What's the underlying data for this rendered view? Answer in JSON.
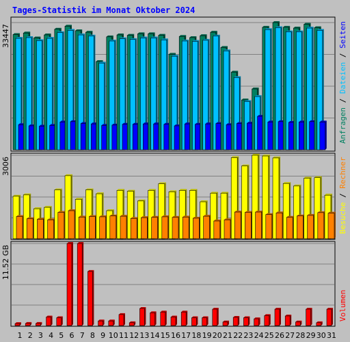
{
  "window": {
    "title": "Tages-Statistik im Monat Oktober 2024"
  },
  "colors": {
    "background": "#C0C0C0",
    "anfragen": "#008060",
    "dateien": "#00C0FF",
    "seiten": "#0000FF",
    "besuche": "#FFFF00",
    "rechner": "#FF8000",
    "volumen": "#FF0000",
    "weekend": "#008040"
  },
  "chart_data": [
    {
      "type": "bar",
      "panel": "anfragen-dateien-seiten",
      "categories": [
        "1",
        "2",
        "3",
        "4",
        "5",
        "6",
        "7",
        "8",
        "9",
        "10",
        "11",
        "12",
        "13",
        "14",
        "15",
        "16",
        "17",
        "18",
        "19",
        "20",
        "21",
        "22",
        "23",
        "24",
        "25",
        "26",
        "27",
        "28",
        "29",
        "30",
        "31"
      ],
      "weekend_days": [
        "5",
        "6",
        "12",
        "13",
        "19",
        "20",
        "26",
        "27"
      ],
      "ymax_label": "33447",
      "ylim": [
        0,
        33447
      ],
      "legend_left_to_right": [
        "Anfragen",
        "Dateien",
        "Seiten"
      ],
      "series": [
        {
          "name": "Anfragen",
          "color": "#008060",
          "values": [
            30300,
            30700,
            29400,
            30200,
            31700,
            32500,
            31300,
            30900,
            23200,
            29700,
            30200,
            30100,
            30500,
            30500,
            30100,
            25100,
            29800,
            29500,
            30000,
            30900,
            26900,
            20400,
            13100,
            16000,
            32200,
            33447,
            32200,
            32000,
            33000,
            32100,
            0
          ]
        },
        {
          "name": "Dateien",
          "color": "#00C0FF",
          "values": [
            29300,
            29500,
            28700,
            29300,
            30800,
            31400,
            30200,
            29900,
            22800,
            28600,
            29200,
            29000,
            29400,
            29400,
            28900,
            24600,
            28600,
            28500,
            28800,
            29900,
            26000,
            19000,
            12700,
            14000,
            31600,
            32100,
            31000,
            31000,
            32000,
            31400,
            0
          ]
        },
        {
          "name": "Seiten",
          "color": "#0000FF",
          "values": [
            6600,
            6300,
            6200,
            6400,
            7300,
            7400,
            6900,
            6800,
            6400,
            6500,
            6700,
            6700,
            6800,
            6800,
            6700,
            6300,
            6800,
            6700,
            6800,
            6900,
            6600,
            6900,
            7000,
            8800,
            7300,
            7400,
            7200,
            7300,
            7400,
            7300,
            0
          ]
        }
      ]
    },
    {
      "type": "bar",
      "panel": "besuche-rechner",
      "categories": [
        "1",
        "2",
        "3",
        "4",
        "5",
        "6",
        "7",
        "8",
        "9",
        "10",
        "11",
        "12",
        "13",
        "14",
        "15",
        "16",
        "17",
        "18",
        "19",
        "20",
        "21",
        "22",
        "23",
        "24",
        "25",
        "26",
        "27",
        "28",
        "29",
        "30",
        "31"
      ],
      "ymax_label": "3006",
      "ylim": [
        0,
        3006
      ],
      "legend_left_to_right": [
        "Besuche",
        "Rechner"
      ],
      "series": [
        {
          "name": "Besuche",
          "color": "#FFFF00",
          "values": [
            1530,
            1580,
            1080,
            1130,
            1760,
            2270,
            1420,
            1760,
            1620,
            1010,
            1740,
            1710,
            1360,
            1740,
            1980,
            1690,
            1740,
            1740,
            1330,
            1640,
            1640,
            2920,
            2620,
            3006,
            2980,
            2910,
            1990,
            1900,
            2180,
            2200,
            1570
          ]
        },
        {
          "name": "Rechner",
          "color": "#FF8000",
          "values": [
            800,
            720,
            700,
            680,
            950,
            1010,
            780,
            800,
            790,
            820,
            810,
            730,
            760,
            770,
            790,
            770,
            780,
            740,
            810,
            640,
            680,
            960,
            950,
            960,
            870,
            930,
            770,
            820,
            840,
            940,
            920
          ]
        }
      ]
    },
    {
      "type": "bar",
      "panel": "volumen",
      "categories": [
        "1",
        "2",
        "3",
        "4",
        "5",
        "6",
        "7",
        "8",
        "9",
        "10",
        "11",
        "12",
        "13",
        "14",
        "15",
        "16",
        "17",
        "18",
        "19",
        "20",
        "21",
        "22",
        "23",
        "24",
        "25",
        "26",
        "27",
        "28",
        "29",
        "30",
        "31"
      ],
      "ymax_label": "11.52 GB",
      "ylim": [
        0,
        11.52
      ],
      "legend_left_to_right": [
        "Volumen"
      ],
      "series": [
        {
          "name": "Volumen",
          "color": "#FF0000",
          "values": [
            0.28,
            0.3,
            0.3,
            1.2,
            1.1,
            11.52,
            11.52,
            7.6,
            0.65,
            0.65,
            1.55,
            0.4,
            2.4,
            1.8,
            1.9,
            1.2,
            1.9,
            1.1,
            1.1,
            2.3,
            0.5,
            1.15,
            1.1,
            0.95,
            1.4,
            2.3,
            1.35,
            0.5,
            2.3,
            0.4,
            2.3
          ]
        }
      ]
    }
  ]
}
